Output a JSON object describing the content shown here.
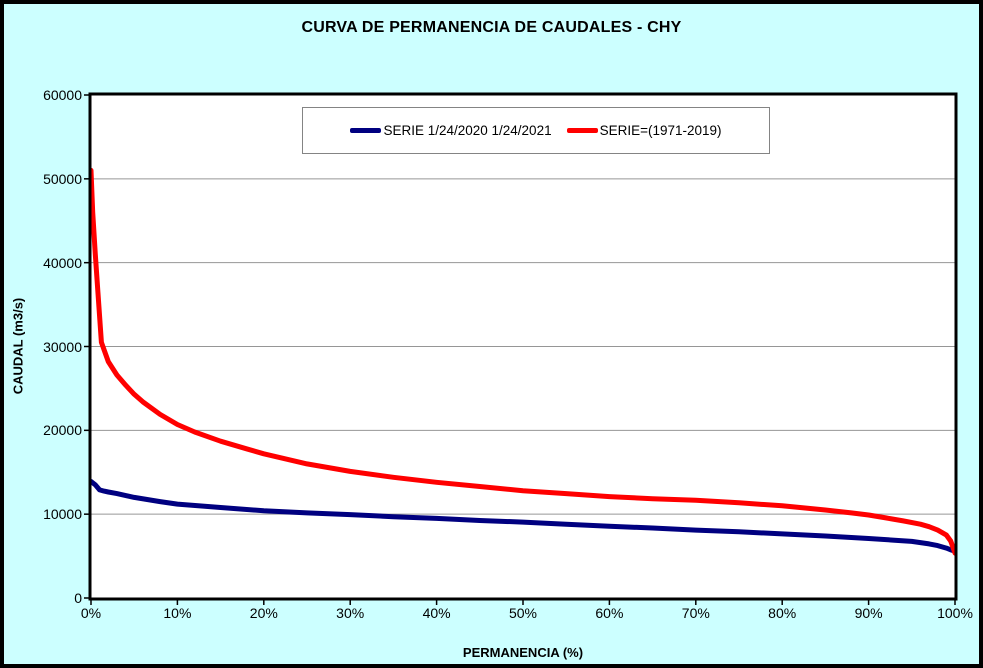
{
  "title": "CURVA DE PERMANENCIA DE CAUDALES - CHY",
  "x_axis": {
    "title": "PERMANENCIA (%)",
    "tick_labels": [
      "0%",
      "10%",
      "20%",
      "30%",
      "40%",
      "50%",
      "60%",
      "70%",
      "80%",
      "90%",
      "100%"
    ],
    "tick_values": [
      0,
      10,
      20,
      30,
      40,
      50,
      60,
      70,
      80,
      90,
      100
    ]
  },
  "y_axis": {
    "title": "CAUDAL (m3/s)",
    "tick_labels": [
      "0",
      "10000",
      "20000",
      "30000",
      "40000",
      "50000",
      "60000"
    ],
    "tick_values": [
      0,
      10000,
      20000,
      30000,
      40000,
      50000,
      60000
    ]
  },
  "legend": {
    "items": [
      {
        "label": "SERIE 1/24/2020 1/24/2021",
        "color": "#000080"
      },
      {
        "label": "SERIE=(1971-2019)",
        "color": "#FF0000"
      }
    ]
  },
  "colors": {
    "background": "#CCFFFF",
    "plot_background": "#FFFFFF",
    "gridline": "#969696",
    "plot_border": "#000000",
    "series_blue": "#000080",
    "series_red": "#FF0000"
  },
  "chart_data": {
    "type": "line",
    "title": "CURVA DE PERMANENCIA DE CAUDALES - CHY",
    "xlabel": "PERMANENCIA (%)",
    "ylabel": "CAUDAL (m3/s)",
    "xlim": [
      0,
      100
    ],
    "ylim": [
      0,
      60000
    ],
    "grid": "horizontal",
    "legend_position": "top-center-inside",
    "series": [
      {
        "name": "SERIE 1/24/2020 1/24/2021",
        "color": "#000080",
        "x": [
          0,
          0.5,
          1,
          1.5,
          2,
          3,
          5,
          8,
          10,
          15,
          20,
          25,
          30,
          35,
          40,
          45,
          50,
          55,
          60,
          65,
          70,
          75,
          80,
          85,
          90,
          93,
          95,
          97,
          98,
          99,
          99.5,
          100
        ],
        "y": [
          13900,
          13500,
          12900,
          12750,
          12650,
          12450,
          12000,
          11500,
          11200,
          10800,
          10400,
          10150,
          9950,
          9700,
          9500,
          9250,
          9050,
          8800,
          8550,
          8350,
          8100,
          7900,
          7650,
          7400,
          7100,
          6900,
          6750,
          6450,
          6250,
          5950,
          5750,
          5600
        ]
      },
      {
        "name": "SERIE=(1971-2019)",
        "color": "#FF0000",
        "x": [
          0,
          0.2,
          0.5,
          0.8,
          1.2,
          2,
          3,
          4,
          5,
          6,
          8,
          10,
          12,
          15,
          18,
          20,
          25,
          30,
          35,
          40,
          45,
          50,
          55,
          60,
          65,
          70,
          75,
          80,
          85,
          88,
          90,
          92,
          94,
          96,
          97,
          98,
          99,
          99.5,
          100
        ],
        "y": [
          51000,
          46000,
          41000,
          36500,
          30500,
          28200,
          26600,
          25400,
          24300,
          23400,
          21900,
          20700,
          19800,
          18700,
          17800,
          17200,
          16000,
          15100,
          14400,
          13800,
          13300,
          12800,
          12450,
          12100,
          11850,
          11650,
          11350,
          11000,
          10500,
          10150,
          9900,
          9550,
          9200,
          8800,
          8500,
          8100,
          7500,
          6800,
          5350
        ]
      }
    ]
  }
}
